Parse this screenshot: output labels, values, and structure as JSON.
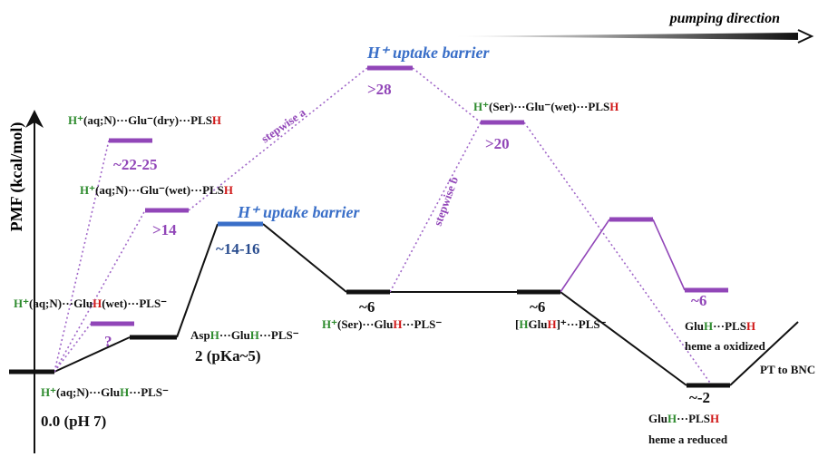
{
  "header": {
    "direction": "pumping direction"
  },
  "axis": {
    "label": "PMF (kcal/mol)"
  },
  "states": [
    {
      "label": [
        "H⁺",
        "(aq;N)···Glu",
        "H",
        "···PLS⁻"
      ],
      "energy": "0.0 (pH 7)"
    },
    {
      "label": [
        "Asp",
        "H",
        "···Glu",
        "H",
        "···PLS⁻"
      ],
      "energy": "2 (pKa~5)"
    },
    {
      "label": [
        "H⁺ uptake barrier"
      ],
      "energy": "~14-16"
    },
    {
      "label": [
        "H⁺",
        "(Ser)···Glu",
        "H",
        "···PLS⁻"
      ],
      "energy": "~6"
    },
    {
      "label": [
        "[",
        "H",
        "Glu",
        "H",
        "]⁺···PLS⁻"
      ],
      "energy": "~6"
    },
    {
      "label": [
        "Glu",
        "H",
        "···PLS",
        "H"
      ],
      "note": "heme a reduced",
      "energy": "~-2"
    },
    {
      "label": [
        "H⁺",
        "(aq;N)···Glu",
        "H",
        "(wet)···PLS⁻"
      ],
      "energy": "?"
    },
    {
      "label": [
        "H⁺",
        "(aq;N)···Glu⁻(dry)···PLS",
        "H"
      ],
      "energy": "~22-25"
    },
    {
      "label": [
        "H⁺",
        "(aq;N)···Glu⁻(wet)···PLS",
        "H"
      ],
      "energy": ">14"
    },
    {
      "label": [
        "H⁺ uptake barrier"
      ],
      "energy": ">28"
    },
    {
      "label": [
        "H⁺",
        "(Ser)···Glu⁻(wet)···PLS",
        "H"
      ],
      "energy": ">20"
    },
    {
      "label": [
        "Glu",
        "H",
        "···PLS",
        "H"
      ],
      "note": "heme a oxidized",
      "energy": "~6"
    }
  ],
  "annotations": {
    "pt": "PT to BNC",
    "stepwise_a": "stepwise a",
    "stepwise_b": "stepwise b"
  }
}
